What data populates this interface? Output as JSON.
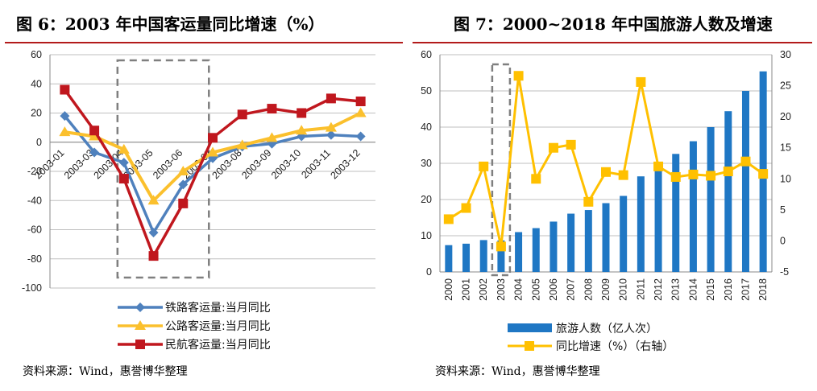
{
  "left": {
    "title": "图 6：2003 年中国客运量同比增速（%）",
    "source": "资料来源：Wind，惠誉博华整理",
    "colors": {
      "rail": "#4f81bd",
      "road": "#fbc02d",
      "air": "#c0171e",
      "grid": "#bfbfbf",
      "box": "#7f7f7f"
    }
  },
  "right": {
    "title": "图 7：2000~2018 年中国旅游人数及增速",
    "source": "资料来源：Wind，惠誉博华整理",
    "colors": {
      "bar": "#1f77c4",
      "line": "#ffc000",
      "grid": "#bfbfbf",
      "box": "#7f7f7f"
    }
  },
  "chart_data": [
    {
      "type": "line",
      "title": "2003 年中国客运量同比增速（%）",
      "categories": [
        "2003-01",
        "2003-03",
        "2003-04",
        "2003-05",
        "2003-06",
        "2003-07",
        "2003-08",
        "2003-09",
        "2003-10",
        "2003-11",
        "2003-12"
      ],
      "ylim": [
        -100,
        60
      ],
      "yticks": [
        -100,
        -80,
        -60,
        -40,
        -20,
        0,
        20,
        40,
        60
      ],
      "grid": true,
      "highlight_range": [
        "2003-04",
        "2003-06"
      ],
      "legend": "bottom",
      "series": [
        {
          "key": "rail",
          "name": "铁路客运量:当月同比",
          "marker": "diamond",
          "values": [
            18,
            -7,
            -14,
            -62,
            -29,
            -11,
            -3,
            -1,
            4,
            5,
            4
          ]
        },
        {
          "key": "road",
          "name": "公路客运量:当月同比",
          "marker": "triangle",
          "values": [
            7,
            4,
            -5,
            -40,
            -20,
            -7,
            -2,
            3,
            8,
            10,
            20
          ]
        },
        {
          "key": "air",
          "name": "民航客运量:当月同比",
          "marker": "square",
          "values": [
            36,
            8,
            -25,
            -78,
            -42,
            3,
            19,
            23,
            20,
            30,
            28
          ]
        }
      ]
    },
    {
      "type": "bar",
      "title": "2000~2018 年中国旅游人数及增速",
      "categories": [
        "2000",
        "2001",
        "2002",
        "2003",
        "2004",
        "2005",
        "2006",
        "2007",
        "2008",
        "2009",
        "2010",
        "2011",
        "2012",
        "2013",
        "2014",
        "2015",
        "2016",
        "2017",
        "2018"
      ],
      "ylim": [
        0,
        60
      ],
      "yticks": [
        0,
        10,
        20,
        30,
        40,
        50,
        60
      ],
      "y2lim": [
        -5,
        30
      ],
      "y2ticks": [
        -5,
        0,
        5,
        10,
        15,
        20,
        25,
        30
      ],
      "grid": true,
      "highlight_range": [
        "2003",
        "2003"
      ],
      "legend": "bottom",
      "series": [
        {
          "key": "bar",
          "type": "bar",
          "axis": "left",
          "name": "旅游人数（亿人次）",
          "values": [
            7.4,
            7.8,
            8.8,
            8.7,
            11.0,
            12.1,
            13.9,
            16.1,
            17.1,
            19.0,
            21.0,
            26.4,
            29.6,
            32.6,
            36.1,
            40.0,
            44.4,
            50.0,
            55.4
          ]
        },
        {
          "key": "line",
          "type": "line",
          "axis": "right",
          "name": "同比增速（%）（右轴）",
          "marker": "square",
          "values": [
            3.5,
            5.3,
            12,
            -0.9,
            26.6,
            10.0,
            15.0,
            15.5,
            6.3,
            11.1,
            10.6,
            25.6,
            12.0,
            10.3,
            10.7,
            10.5,
            11.2,
            12.8,
            10.8
          ]
        }
      ]
    }
  ]
}
